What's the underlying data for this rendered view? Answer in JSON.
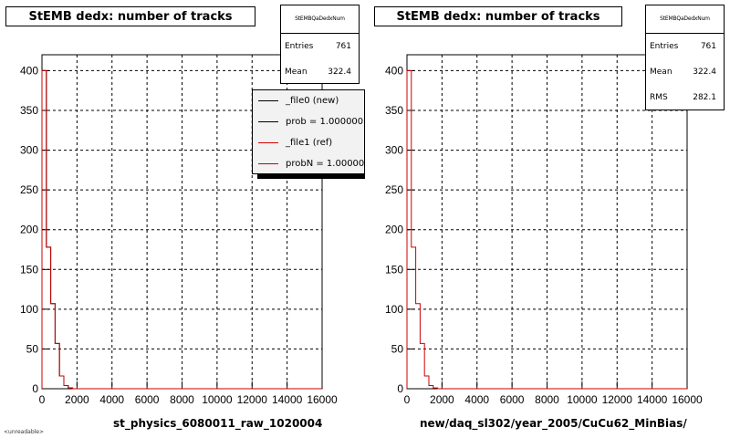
{
  "colors": {
    "file0": "#000000",
    "file1": "#cc0000",
    "grid": "#000000"
  },
  "left": {
    "title": "StEMB dedx: number of tracks",
    "stats": {
      "name": "StEMBQaDedxNum",
      "rows": [
        {
          "k": "Entries",
          "v": "761"
        },
        {
          "k": "Mean",
          "v": "322.4"
        }
      ]
    },
    "legend": [
      {
        "label": "_file0 (new)",
        "color_key": "file0"
      },
      {
        "label": "prob = 1.000000",
        "color_key": "file0"
      },
      {
        "label": "_file1 (ref)",
        "color_key": "file1"
      },
      {
        "label": "probN = 1.000000",
        "color_key": "file1"
      }
    ],
    "xlabel": "st_physics_6080011_raw_1020004"
  },
  "right": {
    "title": "StEMB dedx: number of tracks",
    "stats": {
      "name": "StEMBQaDedxNum",
      "rows": [
        {
          "k": "Entries",
          "v": "761"
        },
        {
          "k": "Mean",
          "v": "322.4"
        },
        {
          "k": "RMS",
          "v": "282.1"
        }
      ]
    },
    "xlabel": "new/daq_sl302/year_2005/CuCu62_MinBias/"
  },
  "footer": "<unreadable>",
  "chart_data": [
    {
      "type": "histogram",
      "title": "StEMB dedx: number of tracks",
      "xlabel": "st_physics_6080011_raw_1020004",
      "ylabel": "",
      "xlim": [
        0,
        16000
      ],
      "ylim": [
        0,
        420
      ],
      "xticks": [
        0,
        2000,
        4000,
        6000,
        8000,
        10000,
        12000,
        14000,
        16000
      ],
      "yticks": [
        0,
        50,
        100,
        150,
        200,
        250,
        300,
        350,
        400
      ],
      "grid": true,
      "legend_position": "top-right",
      "bin_edges": [
        0,
        250,
        500,
        750,
        1000,
        1250,
        1500,
        1750,
        16000
      ],
      "series": [
        {
          "name": "_file0 (new)",
          "values": [
            400,
            178,
            107,
            57,
            16,
            4,
            1,
            0
          ]
        },
        {
          "name": "_file1 (ref)",
          "values": [
            400,
            178,
            107,
            57,
            16,
            4,
            1,
            0
          ]
        }
      ]
    },
    {
      "type": "histogram",
      "title": "StEMB dedx: number of tracks",
      "xlabel": "new/daq_sl302/year_2005/CuCu62_MinBias/",
      "ylabel": "",
      "xlim": [
        0,
        16000
      ],
      "ylim": [
        0,
        420
      ],
      "xticks": [
        0,
        2000,
        4000,
        6000,
        8000,
        10000,
        12000,
        14000,
        16000
      ],
      "yticks": [
        0,
        50,
        100,
        150,
        200,
        250,
        300,
        350,
        400
      ],
      "grid": true,
      "bin_edges": [
        0,
        250,
        500,
        750,
        1000,
        1250,
        1500,
        1750,
        16000
      ],
      "series": [
        {
          "name": "",
          "values": [
            400,
            178,
            107,
            57,
            16,
            4,
            1,
            0
          ]
        }
      ]
    }
  ]
}
